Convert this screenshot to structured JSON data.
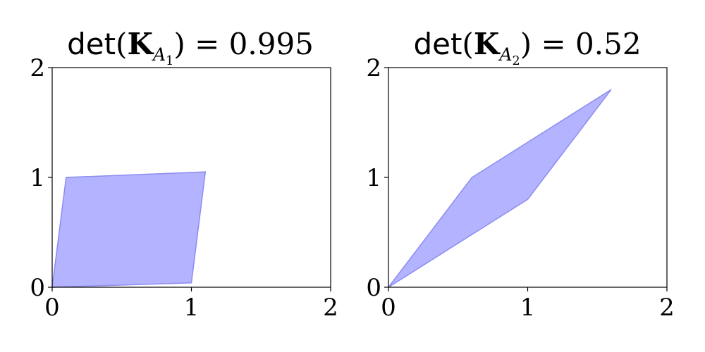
{
  "chart_data": [
    {
      "type": "area",
      "title": "det(K_{A_1}) = 0.995",
      "title_parts": {
        "op": "det",
        "matrix": "K",
        "sub_letter": "A",
        "sub_index": "1",
        "value": "0.995"
      },
      "xlim": [
        0,
        2
      ],
      "ylim": [
        0,
        2
      ],
      "xticks": [
        "0",
        "1",
        "2"
      ],
      "yticks": [
        "0",
        "1",
        "2"
      ],
      "grid": false,
      "polygon": [
        [
          0,
          0
        ],
        [
          1.0,
          0.04
        ],
        [
          1.1,
          1.05
        ],
        [
          0.1,
          1.0
        ]
      ],
      "fill_color": "#b3b3ff",
      "edge_color": "#8c8cf0"
    },
    {
      "type": "area",
      "title": "det(K_{A_2}) = 0.52",
      "title_parts": {
        "op": "det",
        "matrix": "K",
        "sub_letter": "A",
        "sub_index": "2",
        "value": "0.52"
      },
      "xlim": [
        0,
        2
      ],
      "ylim": [
        0,
        2
      ],
      "xticks": [
        "0",
        "1",
        "2"
      ],
      "yticks": [
        "0",
        "1",
        "2"
      ],
      "grid": false,
      "polygon": [
        [
          0,
          0
        ],
        [
          1.0,
          0.8
        ],
        [
          1.6,
          1.8
        ],
        [
          0.6,
          1.0
        ]
      ],
      "fill_color": "#b3b3ff",
      "edge_color": "#8c8cf0"
    }
  ]
}
